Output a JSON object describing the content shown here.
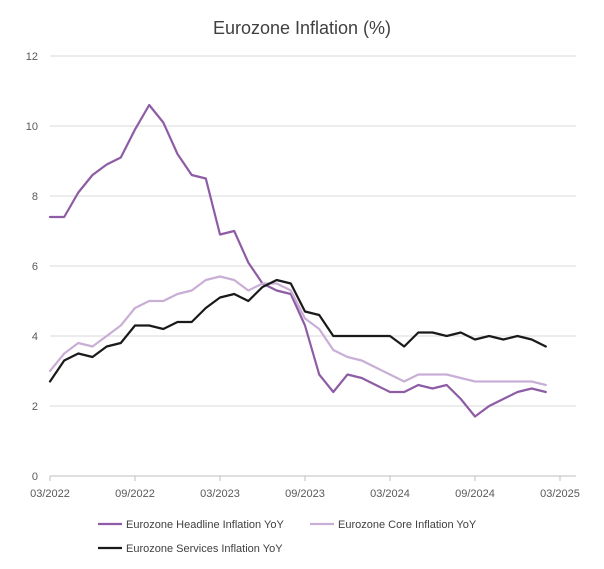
{
  "chart_data": {
    "type": "line",
    "title": "Eurozone Inflation (%)",
    "xlabel": "",
    "ylabel": "",
    "ylim": [
      0,
      12
    ],
    "yticks": [
      "0",
      "2",
      "4",
      "6",
      "8",
      "10",
      "12"
    ],
    "xticks": [
      "03/2022",
      "09/2022",
      "03/2023",
      "09/2023",
      "03/2024",
      "09/2024",
      "03/2025"
    ],
    "grid": true,
    "legend_position": "bottom",
    "x": [
      "2022-03",
      "2022-04",
      "2022-05",
      "2022-06",
      "2022-07",
      "2022-08",
      "2022-09",
      "2022-10",
      "2022-11",
      "2022-12",
      "2023-01",
      "2023-02",
      "2023-03",
      "2023-04",
      "2023-05",
      "2023-06",
      "2023-07",
      "2023-08",
      "2023-09",
      "2023-10",
      "2023-11",
      "2023-12",
      "2024-01",
      "2024-02",
      "2024-03",
      "2024-04",
      "2024-05",
      "2024-06",
      "2024-07",
      "2024-08",
      "2024-09",
      "2024-10",
      "2024-11",
      "2024-12",
      "2025-01",
      "2025-02"
    ],
    "series": [
      {
        "name": "Eurozone Headline Inflation YoY",
        "color": "#8e5ca5",
        "values": [
          7.4,
          7.4,
          8.1,
          8.6,
          8.9,
          9.1,
          9.9,
          10.6,
          10.1,
          9.2,
          8.6,
          8.5,
          6.9,
          7.0,
          6.1,
          5.5,
          5.3,
          5.2,
          4.3,
          2.9,
          2.4,
          2.9,
          2.8,
          2.6,
          2.4,
          2.4,
          2.6,
          2.5,
          2.6,
          2.2,
          1.7,
          2.0,
          2.2,
          2.4,
          2.5,
          2.4
        ]
      },
      {
        "name": "Eurozone Core Inflation YoY",
        "color": "#c9afd6",
        "values": [
          3.0,
          3.5,
          3.8,
          3.7,
          4.0,
          4.3,
          4.8,
          5.0,
          5.0,
          5.2,
          5.3,
          5.6,
          5.7,
          5.6,
          5.3,
          5.5,
          5.5,
          5.3,
          4.5,
          4.2,
          3.6,
          3.4,
          3.3,
          3.1,
          2.9,
          2.7,
          2.9,
          2.9,
          2.9,
          2.8,
          2.7,
          2.7,
          2.7,
          2.7,
          2.7,
          2.6
        ]
      },
      {
        "name": "Eurozone Services Inflation YoY",
        "color": "#1a1a1a",
        "values": [
          2.7,
          3.3,
          3.5,
          3.4,
          3.7,
          3.8,
          4.3,
          4.3,
          4.2,
          4.4,
          4.4,
          4.8,
          5.1,
          5.2,
          5.0,
          5.4,
          5.6,
          5.5,
          4.7,
          4.6,
          4.0,
          4.0,
          4.0,
          4.0,
          4.0,
          3.7,
          4.1,
          4.1,
          4.0,
          4.1,
          3.9,
          4.0,
          3.9,
          4.0,
          3.9,
          3.7
        ]
      }
    ]
  }
}
